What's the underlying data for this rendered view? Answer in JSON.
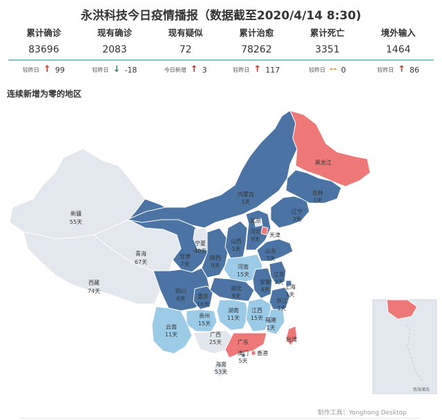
{
  "title": "永洪科技今日疫情播报（数据截至2020/4/14 8:30)",
  "stats": [
    {
      "label": "累计确诊",
      "value": "83696",
      "delta_label": "较昨日",
      "delta_dir": "up",
      "delta": "99"
    },
    {
      "label": "现有确诊",
      "value": "2083",
      "delta_label": "较昨日",
      "delta_dir": "down",
      "delta": "-18"
    },
    {
      "label": "现有疑似",
      "value": "72",
      "delta_label": "今日新增",
      "delta_dir": "up",
      "delta": "3"
    },
    {
      "label": "累计治愈",
      "value": "78262",
      "delta_label": "较昨日",
      "delta_dir": "up",
      "delta": "117"
    },
    {
      "label": "累计死亡",
      "value": "3351",
      "delta_label": "较昨日",
      "delta_dir": "flat",
      "delta": "0"
    },
    {
      "label": "境外输入",
      "value": "1464",
      "delta_label": "较昨日",
      "delta_dir": "up",
      "delta": "86"
    }
  ],
  "subtitle": "连续新增为零的地区",
  "colors": {
    "dark": "#4b74a5",
    "light": "#9ccbe8",
    "pale": "#e3e8ee",
    "red": "#ee7877",
    "teal": "#7fc6c6"
  },
  "provinces": {
    "heilongjiang": {
      "name": "黑龙江",
      "days": ""
    },
    "jilin": {
      "name": "吉林",
      "days": "1天"
    },
    "liaoning": {
      "name": "辽宁",
      "days": "3天"
    },
    "neimenggu": {
      "name": "内蒙古",
      "days": "1天"
    },
    "beijing": {
      "name": "北京",
      "days": ""
    },
    "tianjin": {
      "name": "天津",
      "days": ""
    },
    "hebei": {
      "name": "河北",
      "days": "9天"
    },
    "shanxi": {
      "name": "山西",
      "days": "1天"
    },
    "shandong": {
      "name": "山东",
      "days": "3天"
    },
    "xinjiang": {
      "name": "新疆",
      "days": "55天"
    },
    "xizang": {
      "name": "西藏",
      "days": "74天"
    },
    "qinghai": {
      "name": "青海",
      "days": "67天"
    },
    "gansu": {
      "name": "甘肃",
      "days": "7天"
    },
    "ningxia": {
      "name": "宁夏",
      "days": "40天"
    },
    "shaanxi": {
      "name": "陕西",
      "days": "9天"
    },
    "henan": {
      "name": "河南",
      "days": "15天"
    },
    "jiangsu": {
      "name": "江苏",
      "days": "3天"
    },
    "anhui": {
      "name": "安徽",
      "days": "4天"
    },
    "hubei": {
      "name": "湖北",
      "days": "9天"
    },
    "shanghai": {
      "name": "上海",
      "days": "1天"
    },
    "zhejiang": {
      "name": "浙江",
      "days": "1天"
    },
    "sichuan": {
      "name": "四川",
      "days": "6天"
    },
    "chongqing": {
      "name": "重庆",
      "days": "16天"
    },
    "guizhou": {
      "name": "贵州",
      "days": "15天"
    },
    "hunan": {
      "name": "湖南",
      "days": "11天"
    },
    "jiangxi": {
      "name": "江西",
      "days": "15天"
    },
    "fujian": {
      "name": "福建",
      "days": "1天"
    },
    "yunnan": {
      "name": "云南",
      "days": "11天"
    },
    "guangxi": {
      "name": "广西",
      "days": "25天"
    },
    "guangdong": {
      "name": "广东",
      "days": ""
    },
    "aomen": {
      "name": "澳门",
      "days": "5天"
    },
    "xianggang": {
      "name": "香港",
      "days": ""
    },
    "taiwan": {
      "name": "台湾",
      "days": ""
    },
    "hainan": {
      "name": "海南",
      "days": "53天"
    }
  },
  "inset_label": "南海诸岛",
  "footer": "制作工具：Yonghong Desktop"
}
